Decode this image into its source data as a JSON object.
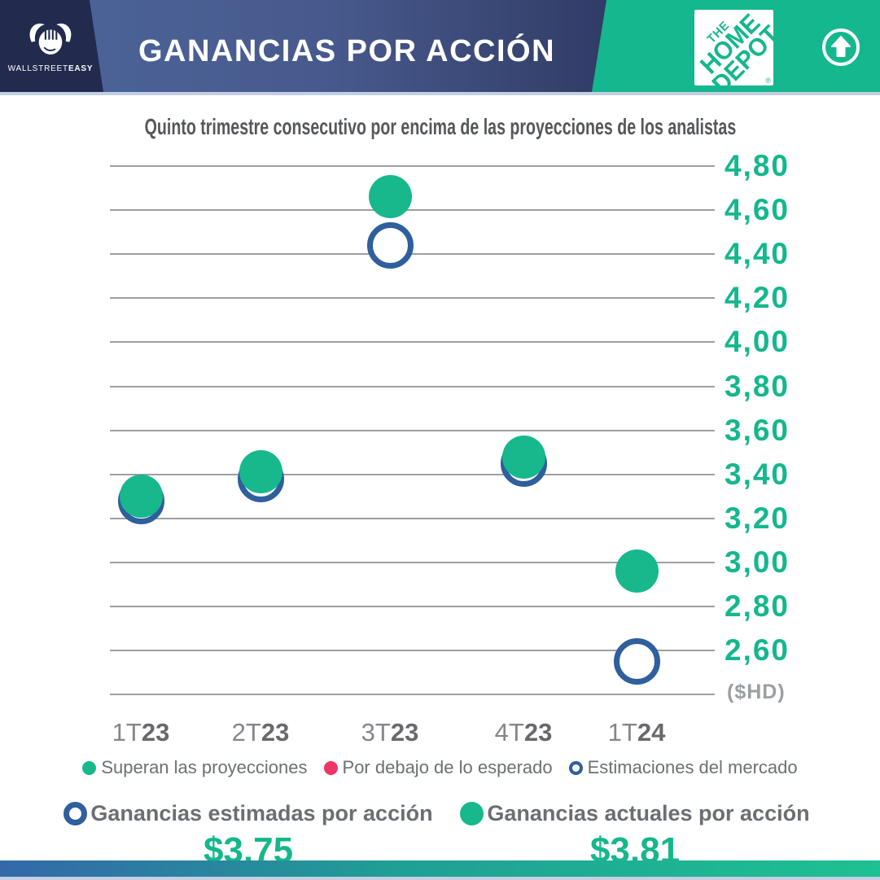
{
  "header": {
    "brand": {
      "word1": "WALLSTREET",
      "word2": "EASY"
    },
    "title": "GANANCIAS POR ACCIÓN",
    "homedepot": {
      "the": "THE",
      "home": "HOME",
      "depot": "DEPOT",
      "reg": "®"
    }
  },
  "subtitle": "Quinto trimestre consecutivo por encima de las proyecciones de los analistas",
  "chart_data": {
    "type": "scatter",
    "title": "Quinto trimestre consecutivo por encima de las proyecciones de los analistas",
    "categories": [
      {
        "prefix": "1T",
        "year": "23"
      },
      {
        "prefix": "2T",
        "year": "23"
      },
      {
        "prefix": "3T",
        "year": "23"
      },
      {
        "prefix": "4T",
        "year": "23"
      },
      {
        "prefix": "1T",
        "year": "24"
      }
    ],
    "series": [
      {
        "name": "Ganancias actuales por acción",
        "marker": "dot",
        "color": "#16b88c",
        "values": [
          3.3,
          3.41,
          4.66,
          3.48,
          2.96
        ]
      },
      {
        "name": "Estimaciones del mercado",
        "marker": "ring",
        "color": "#2f5f9c",
        "values": [
          3.28,
          3.38,
          4.44,
          3.45,
          2.55
        ]
      }
    ],
    "ylim": [
      2.4,
      4.9
    ],
    "yticks": [
      "4,80",
      "4,60",
      "4,40",
      "4,20",
      "4,00",
      "3,80",
      "3,60",
      "3,40",
      "3,20",
      "3,00",
      "2,80",
      "2,60"
    ],
    "unit_label": "($HD)",
    "grid": true,
    "legend_position": "bottom"
  },
  "legend": {
    "items": [
      {
        "label": "Superan las proyecciones",
        "marker": "dot",
        "color": "#16b88c"
      },
      {
        "label": "Por debajo de lo esperado",
        "marker": "dot",
        "color": "#ee3566"
      },
      {
        "label": "Estimaciones del mercado",
        "marker": "ring",
        "color": "#2f5f9c"
      }
    ]
  },
  "summary": {
    "estimated": {
      "label": "Ganancias estimadas por acción",
      "value": "$3,75"
    },
    "actual": {
      "label": "Ganancias actuales por acción",
      "value": "$3,81"
    }
  },
  "colors": {
    "accent_teal": "#14b78e",
    "estimate_blue": "#2f5f9c",
    "miss_pink": "#ee3566",
    "navy": "#222b4e"
  }
}
